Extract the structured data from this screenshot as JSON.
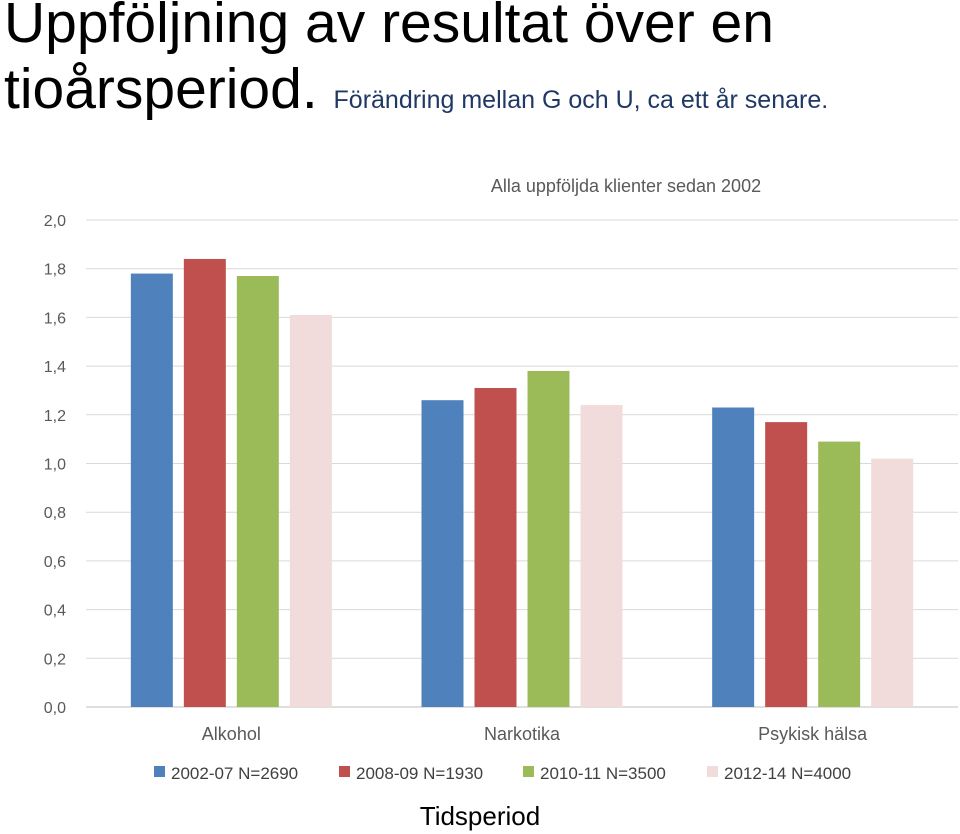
{
  "slide": {
    "title": "Uppföljning av resultat över en tioårsperiod.",
    "subtitle": "Förändring mellan G och U, ca ett år senare."
  },
  "chart_data": {
    "type": "bar",
    "title": "Alla uppföljda klienter sedan 2002",
    "xlabel": "Tidsperiod",
    "ylabel": "",
    "ylim": [
      0,
      2.0
    ],
    "yticks": [
      "0,0",
      "0,2",
      "0,4",
      "0,6",
      "0,8",
      "1,0",
      "1,2",
      "1,4",
      "1,6",
      "1,8",
      "2,0"
    ],
    "grid": true,
    "legend_position": "bottom",
    "categories": [
      "Alkohol",
      "Narkotika",
      "Psykisk hälsa"
    ],
    "series": [
      {
        "name": "2002-07 N=2690",
        "color": "#4f81bd",
        "values": [
          1.78,
          1.26,
          1.23
        ]
      },
      {
        "name": "2008-09 N=1930",
        "color": "#c0504d",
        "values": [
          1.84,
          1.31,
          1.17
        ]
      },
      {
        "name": "2010-11 N=3500",
        "color": "#9bbb59",
        "values": [
          1.77,
          1.38,
          1.09
        ]
      },
      {
        "name": "2012-14 N=4000",
        "color": "#f2dcdb",
        "values": [
          1.61,
          1.24,
          1.02
        ]
      }
    ]
  }
}
